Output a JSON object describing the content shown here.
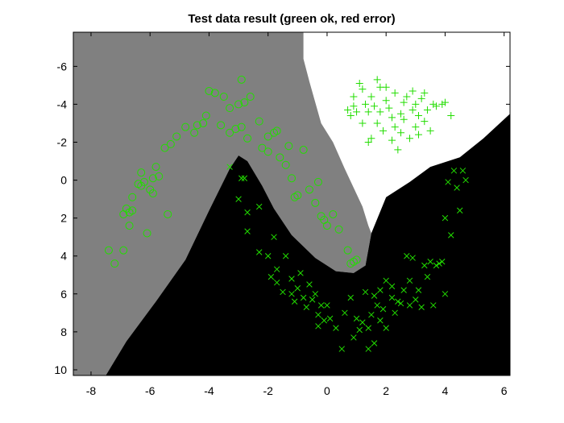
{
  "chart_data": {
    "type": "scatter",
    "title": "Test data result (green ok, red error)",
    "xlabel": "",
    "ylabel": "",
    "xlim": [
      -8.6,
      6.2
    ],
    "ylim": [
      -7.8,
      10.3
    ],
    "y_axis_reversed": true,
    "x_ticks": [
      -8,
      -6,
      -4,
      -2,
      0,
      2,
      4,
      6
    ],
    "y_ticks": [
      -6,
      -4,
      -2,
      0,
      2,
      4,
      6,
      8,
      10
    ],
    "grid": false,
    "legend": "none",
    "regions": {
      "gray_class": "#808080",
      "white_class": "#ffffff",
      "black_class": "#000000",
      "gray_white_boundary": [
        [
          -0.8,
          -7.8
        ],
        [
          -0.8,
          -6.4
        ],
        [
          -0.6,
          -5.2
        ],
        [
          -0.4,
          -4.1
        ],
        [
          -0.2,
          -3.0
        ],
        [
          0.2,
          -2.0
        ],
        [
          0.6,
          -0.6
        ],
        [
          0.9,
          0.4
        ],
        [
          1.2,
          1.4
        ],
        [
          1.4,
          2.4
        ],
        [
          1.5,
          2.8
        ]
      ],
      "white_black_boundary": [
        [
          1.5,
          2.8
        ],
        [
          2.0,
          0.9
        ],
        [
          2.8,
          0.1
        ],
        [
          3.5,
          -0.7
        ],
        [
          4.5,
          -1.2
        ],
        [
          5.3,
          -2.2
        ],
        [
          6.2,
          -3.5
        ]
      ],
      "gray_black_boundary": [
        [
          -7.5,
          10.3
        ],
        [
          -6.8,
          8.5
        ],
        [
          -5.8,
          6.4
        ],
        [
          -4.8,
          4.2
        ],
        [
          -4.0,
          1.6
        ],
        [
          -3.3,
          -0.6
        ],
        [
          -3.0,
          -1.3
        ],
        [
          -2.7,
          -1.0
        ],
        [
          -2.2,
          0.3
        ],
        [
          -1.8,
          1.5
        ],
        [
          -1.2,
          2.9
        ],
        [
          -0.4,
          4.1
        ],
        [
          0.3,
          4.8
        ],
        [
          0.9,
          4.9
        ],
        [
          1.3,
          4.5
        ],
        [
          1.5,
          2.8
        ]
      ]
    },
    "series": [
      {
        "marker": "circle",
        "color": "#22dd00",
        "points": [
          [
            -7.4,
            3.7
          ],
          [
            -7.2,
            4.4
          ],
          [
            -6.9,
            3.7
          ],
          [
            -6.9,
            1.8
          ],
          [
            -6.8,
            1.5
          ],
          [
            -6.7,
            2.4
          ],
          [
            -6.7,
            1.7
          ],
          [
            -6.6,
            1.6
          ],
          [
            -6.6,
            0.9
          ],
          [
            -6.4,
            0.2
          ],
          [
            -6.3,
            0.3
          ],
          [
            -6.3,
            -0.4
          ],
          [
            -6.2,
            0.1
          ],
          [
            -6.1,
            2.8
          ],
          [
            -6.0,
            0.5
          ],
          [
            -5.9,
            -0.1
          ],
          [
            -5.9,
            0.7
          ],
          [
            -5.8,
            -0.7
          ],
          [
            -5.7,
            -0.2
          ],
          [
            -5.5,
            -1.7
          ],
          [
            -5.4,
            1.8
          ],
          [
            -5.3,
            -1.9
          ],
          [
            -5.1,
            -2.3
          ],
          [
            -4.8,
            -2.8
          ],
          [
            -4.5,
            -2.5
          ],
          [
            -4.4,
            -2.9
          ],
          [
            -4.2,
            -3.0
          ],
          [
            -4.1,
            -3.4
          ],
          [
            -4.0,
            -4.7
          ],
          [
            -3.8,
            -4.6
          ],
          [
            -3.6,
            -2.9
          ],
          [
            -3.5,
            -4.4
          ],
          [
            -3.3,
            -3.8
          ],
          [
            -3.3,
            -2.5
          ],
          [
            -3.1,
            -2.7
          ],
          [
            -3.0,
            -4.0
          ],
          [
            -2.9,
            -2.8
          ],
          [
            -2.8,
            -4.1
          ],
          [
            -2.9,
            -5.3
          ],
          [
            -2.7,
            -2.2
          ],
          [
            -2.6,
            -4.4
          ],
          [
            -2.3,
            -3.1
          ],
          [
            -2.2,
            -1.7
          ],
          [
            -2.0,
            -2.3
          ],
          [
            -2.0,
            -1.5
          ],
          [
            -1.8,
            -2.5
          ],
          [
            -1.7,
            -2.6
          ],
          [
            -1.6,
            -1.2
          ],
          [
            -1.4,
            -0.8
          ],
          [
            -1.3,
            -1.8
          ],
          [
            -1.2,
            -0.1
          ],
          [
            -1.1,
            0.9
          ],
          [
            -1.0,
            0.8
          ],
          [
            -0.8,
            -1.6
          ],
          [
            -0.6,
            0.5
          ],
          [
            -0.4,
            1.2
          ],
          [
            -0.3,
            0.1
          ],
          [
            -0.2,
            1.9
          ],
          [
            -0.1,
            2.1
          ],
          [
            0.0,
            2.4
          ],
          [
            0.2,
            1.8
          ],
          [
            0.4,
            2.6
          ],
          [
            0.7,
            3.7
          ],
          [
            0.8,
            4.4
          ],
          [
            0.9,
            4.3
          ],
          [
            1.0,
            4.2
          ]
        ]
      },
      {
        "marker": "plus",
        "color": "#22dd00",
        "points": [
          [
            0.7,
            -3.7
          ],
          [
            0.8,
            -3.4
          ],
          [
            0.9,
            -3.9
          ],
          [
            0.9,
            -4.4
          ],
          [
            1.0,
            -3.6
          ],
          [
            1.1,
            -5.1
          ],
          [
            1.2,
            -4.8
          ],
          [
            1.2,
            -3.0
          ],
          [
            1.3,
            -4.0
          ],
          [
            1.4,
            -2.0
          ],
          [
            1.4,
            -3.6
          ],
          [
            1.5,
            -4.4
          ],
          [
            1.5,
            -2.2
          ],
          [
            1.6,
            -3.9
          ],
          [
            1.7,
            -3.0
          ],
          [
            1.7,
            -5.3
          ],
          [
            1.8,
            -4.9
          ],
          [
            1.8,
            -3.6
          ],
          [
            1.9,
            -2.6
          ],
          [
            2.0,
            -4.2
          ],
          [
            2.0,
            -4.9
          ],
          [
            2.1,
            -3.8
          ],
          [
            2.2,
            -2.1
          ],
          [
            2.2,
            -3.3
          ],
          [
            2.3,
            -2.8
          ],
          [
            2.3,
            -4.6
          ],
          [
            2.4,
            -1.6
          ],
          [
            2.5,
            -3.5
          ],
          [
            2.5,
            -2.5
          ],
          [
            2.6,
            -4.1
          ],
          [
            2.6,
            -3.2
          ],
          [
            2.7,
            -4.4
          ],
          [
            2.8,
            -2.2
          ],
          [
            2.9,
            -3.7
          ],
          [
            2.9,
            -4.7
          ],
          [
            3.0,
            -4.0
          ],
          [
            3.0,
            -2.8
          ],
          [
            3.1,
            -3.4
          ],
          [
            3.1,
            -2.4
          ],
          [
            3.2,
            -4.3
          ],
          [
            3.3,
            -3.1
          ],
          [
            3.3,
            -4.6
          ],
          [
            3.4,
            -3.7
          ],
          [
            3.5,
            -2.6
          ],
          [
            3.6,
            -4.0
          ],
          [
            3.7,
            -3.9
          ],
          [
            3.9,
            -4.0
          ],
          [
            4.0,
            -4.1
          ],
          [
            4.2,
            -3.4
          ]
        ]
      },
      {
        "marker": "x",
        "color": "#22dd00",
        "points": [
          [
            -3.3,
            -0.7
          ],
          [
            -3.0,
            1.0
          ],
          [
            -2.9,
            -0.1
          ],
          [
            -2.8,
            -0.1
          ],
          [
            -2.7,
            1.7
          ],
          [
            -2.7,
            2.7
          ],
          [
            -2.3,
            1.4
          ],
          [
            -2.3,
            3.8
          ],
          [
            -2.0,
            4.0
          ],
          [
            -1.9,
            5.1
          ],
          [
            -1.8,
            3.0
          ],
          [
            -1.7,
            4.7
          ],
          [
            -1.7,
            5.4
          ],
          [
            -1.5,
            5.9
          ],
          [
            -1.4,
            4.0
          ],
          [
            -1.2,
            5.2
          ],
          [
            -1.2,
            6.0
          ],
          [
            -1.1,
            6.4
          ],
          [
            -1.0,
            5.7
          ],
          [
            -0.9,
            4.9
          ],
          [
            -0.8,
            6.2
          ],
          [
            -0.7,
            6.7
          ],
          [
            -0.6,
            5.5
          ],
          [
            -0.5,
            6.3
          ],
          [
            -0.4,
            6.0
          ],
          [
            -0.3,
            7.1
          ],
          [
            -0.2,
            6.6
          ],
          [
            -0.1,
            7.4
          ],
          [
            0.0,
            6.6
          ],
          [
            -0.3,
            7.7
          ],
          [
            0.1,
            7.3
          ],
          [
            0.3,
            7.8
          ],
          [
            0.5,
            8.9
          ],
          [
            0.6,
            7.0
          ],
          [
            0.8,
            6.2
          ],
          [
            0.9,
            8.3
          ],
          [
            1.0,
            7.3
          ],
          [
            1.1,
            7.9
          ],
          [
            1.2,
            7.5
          ],
          [
            1.3,
            5.9
          ],
          [
            1.4,
            8.9
          ],
          [
            1.4,
            7.8
          ],
          [
            1.5,
            7.1
          ],
          [
            1.6,
            8.6
          ],
          [
            1.6,
            6.1
          ],
          [
            1.7,
            6.6
          ],
          [
            1.8,
            7.4
          ],
          [
            1.8,
            5.8
          ],
          [
            1.9,
            6.8
          ],
          [
            2.0,
            5.3
          ],
          [
            2.0,
            7.8
          ],
          [
            2.2,
            5.6
          ],
          [
            2.2,
            6.2
          ],
          [
            2.3,
            7.0
          ],
          [
            2.4,
            6.4
          ],
          [
            2.5,
            6.5
          ],
          [
            2.6,
            5.8
          ],
          [
            2.7,
            4.0
          ],
          [
            2.8,
            5.3
          ],
          [
            2.8,
            6.6
          ],
          [
            2.9,
            4.1
          ],
          [
            3.0,
            6.3
          ],
          [
            3.1,
            5.8
          ],
          [
            3.2,
            6.7
          ],
          [
            3.3,
            4.5
          ],
          [
            3.4,
            5.1
          ],
          [
            3.5,
            4.3
          ],
          [
            3.6,
            6.6
          ],
          [
            3.7,
            4.5
          ],
          [
            3.8,
            4.4
          ],
          [
            3.9,
            4.3
          ],
          [
            4.0,
            6.0
          ],
          [
            4.0,
            2.0
          ],
          [
            4.1,
            0.1
          ],
          [
            4.2,
            2.9
          ],
          [
            4.3,
            -0.5
          ],
          [
            4.4,
            0.4
          ],
          [
            4.5,
            1.6
          ],
          [
            4.6,
            -0.5
          ],
          [
            4.7,
            0.0
          ]
        ]
      }
    ]
  }
}
